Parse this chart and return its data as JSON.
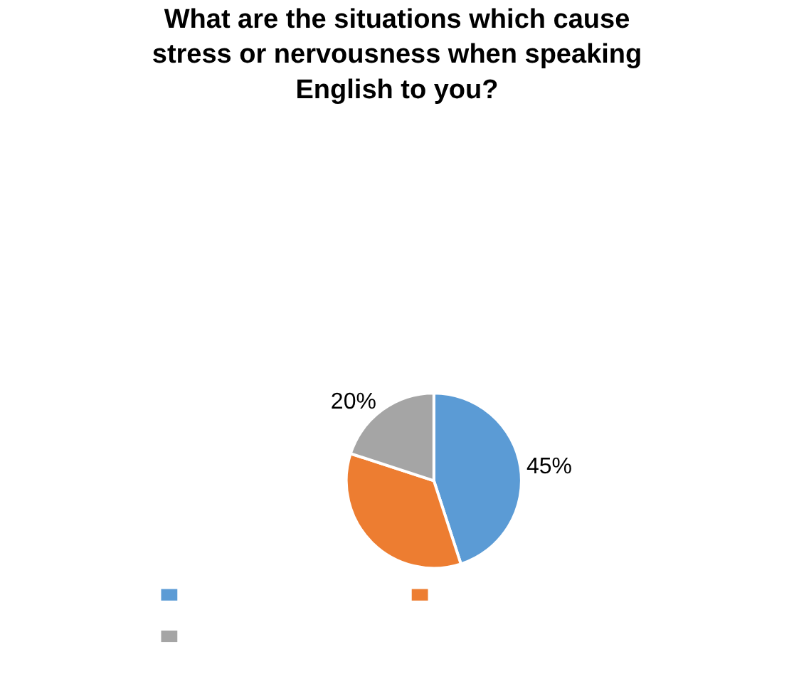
{
  "chart_data": {
    "type": "pie",
    "title": "What are the situations which cause stress or nervousness when speaking English to you?",
    "categories": [
      null,
      null,
      null
    ],
    "values": [
      45,
      35,
      20
    ],
    "colors": [
      "#5b9bd5",
      "#ed7d31",
      "#a5a5a5"
    ],
    "value_labels": [
      "45%",
      null,
      "20%"
    ]
  }
}
